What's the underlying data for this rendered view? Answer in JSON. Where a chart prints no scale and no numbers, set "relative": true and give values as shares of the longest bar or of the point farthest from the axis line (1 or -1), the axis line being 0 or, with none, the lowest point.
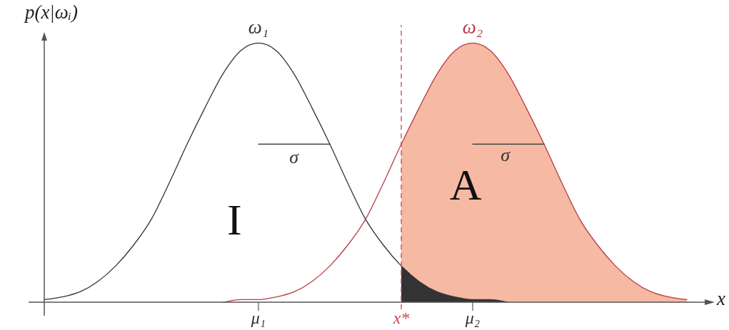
{
  "chart_data": {
    "type": "line",
    "relative": true,
    "ylabel": "p(x|ωᵢ)",
    "xlabel": "x",
    "categories": [
      null,
      null,
      null,
      null,
      null,
      null,
      null,
      null,
      null,
      null,
      null,
      null,
      "μ₁",
      null,
      null,
      null,
      null,
      null,
      null,
      null,
      "x*",
      null,
      null,
      null,
      "μ₂",
      null,
      null,
      null,
      null,
      null,
      null,
      null,
      null,
      null,
      null,
      null,
      null,
      null
    ],
    "series": [
      {
        "type": "area",
        "color": "#f6b9a3",
        "values": [
          null,
          null,
          null,
          null,
          null,
          null,
          null,
          null,
          null,
          null,
          null,
          null,
          null,
          null,
          null,
          null,
          null,
          null,
          null,
          null,
          0.61,
          0.75,
          0.88,
          0.97,
          1,
          0.97,
          0.88,
          0.75,
          0.61,
          0.46,
          0.32,
          0.22,
          0.14,
          0.08,
          0.04,
          0.02,
          0.01,
          null
        ]
      },
      {
        "type": "area",
        "color": "#333333",
        "values": [
          null,
          null,
          null,
          null,
          null,
          null,
          null,
          null,
          null,
          null,
          null,
          null,
          null,
          null,
          null,
          null,
          null,
          null,
          null,
          null,
          0.14,
          0.08,
          0.04,
          0.02,
          0.01,
          0.01,
          0,
          null,
          null,
          null,
          null,
          null,
          null,
          null,
          null,
          null,
          null,
          null
        ]
      },
      {
        "name": "ω₁",
        "color": "#333333",
        "values": [
          0.01,
          0.02,
          0.04,
          0.08,
          0.14,
          0.22,
          0.32,
          0.46,
          0.61,
          0.75,
          0.88,
          0.97,
          1,
          0.97,
          0.88,
          0.75,
          0.61,
          0.46,
          0.32,
          0.22,
          0.14,
          0.08,
          0.04,
          0.02,
          0.01,
          0.01,
          0,
          null,
          null,
          null,
          null,
          null,
          null,
          null,
          null,
          null,
          null,
          null
        ]
      },
      {
        "name": "ω₂",
        "color": "#b83a44",
        "values": [
          null,
          null,
          null,
          null,
          null,
          null,
          null,
          null,
          null,
          null,
          0,
          0.01,
          0.01,
          0.02,
          0.04,
          0.08,
          0.14,
          0.22,
          0.32,
          0.46,
          0.61,
          0.75,
          0.88,
          0.97,
          1,
          0.97,
          0.88,
          0.75,
          0.61,
          0.46,
          0.32,
          0.22,
          0.14,
          0.08,
          0.04,
          0.02,
          0.01,
          null
        ]
      },
      {
        "color": "#444444",
        "values": [
          null,
          null,
          null,
          null,
          null,
          null,
          null,
          null,
          null,
          null,
          null,
          null,
          0.61,
          0.61,
          0.61,
          0.61,
          0.61,
          null,
          null,
          null,
          null,
          null,
          null,
          null,
          null,
          null,
          null,
          null,
          null,
          null,
          null,
          null,
          null,
          null,
          null,
          null,
          null,
          null
        ]
      },
      {
        "color": "#444444",
        "values": [
          null,
          null,
          null,
          null,
          null,
          null,
          null,
          null,
          null,
          null,
          null,
          null,
          null,
          null,
          null,
          null,
          null,
          null,
          null,
          null,
          null,
          null,
          null,
          null,
          0.61,
          0.61,
          0.61,
          0.61,
          0.61,
          null,
          null,
          null,
          null,
          null,
          null,
          null,
          null,
          null
        ]
      }
    ],
    "ref_lines": [
      {
        "axis": "x",
        "value": "x*",
        "color": "#c8464f",
        "line_style": "dashed"
      }
    ],
    "annotations": [
      "σ",
      "σ",
      "I",
      "A"
    ]
  }
}
